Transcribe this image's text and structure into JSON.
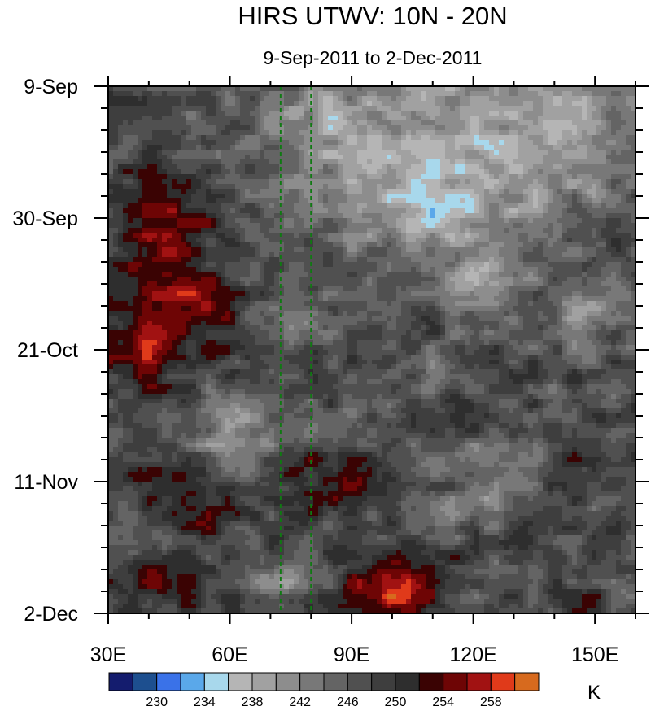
{
  "chart_data": {
    "type": "heatmap",
    "title": "HIRS UTWV: 10N - 20N",
    "subtitle": "9-Sep-2011 to 2-Dec-2011",
    "xlabel": "",
    "ylabel": "",
    "x_range": [
      30,
      160
    ],
    "y_range_days": [
      0,
      84
    ],
    "x_ticks": [
      {
        "value": 30,
        "label": "30E"
      },
      {
        "value": 60,
        "label": "60E"
      },
      {
        "value": 90,
        "label": "90E"
      },
      {
        "value": 120,
        "label": "120E"
      },
      {
        "value": 150,
        "label": "150E"
      }
    ],
    "y_ticks": [
      {
        "day": 0,
        "label": "9-Sep"
      },
      {
        "day": 21,
        "label": "30-Sep"
      },
      {
        "day": 42,
        "label": "21-Oct"
      },
      {
        "day": 63,
        "label": "11-Nov"
      },
      {
        "day": 84,
        "label": "2-Dec"
      }
    ],
    "reference_lines_lon": [
      72.5,
      80
    ],
    "colorbar": {
      "units": "K",
      "levels": [
        228,
        230,
        232,
        234,
        236,
        238,
        240,
        242,
        244,
        246,
        248,
        250,
        252,
        254,
        256,
        258,
        260
      ],
      "labels": [
        {
          "value": 230,
          "text": "230"
        },
        {
          "value": 234,
          "text": "234"
        },
        {
          "value": 238,
          "text": "238"
        },
        {
          "value": 242,
          "text": "242"
        },
        {
          "value": 246,
          "text": "246"
        },
        {
          "value": 250,
          "text": "250"
        },
        {
          "value": 254,
          "text": "254"
        },
        {
          "value": 258,
          "text": "258"
        }
      ],
      "colors": [
        "#141c6e",
        "#1d4f8f",
        "#3a72e8",
        "#5aa8ea",
        "#a8d8ec",
        "#b5b5b5",
        "#a1a1a1",
        "#8d8d8d",
        "#787878",
        "#646464",
        "#505050",
        "#3e3e3e",
        "#2e2e2e",
        "#3a0303",
        "#6e0505",
        "#a11212",
        "#e03a1a",
        "#d76a1e"
      ]
    },
    "field_base_k": 247.5,
    "features": [
      {
        "lon": 43,
        "day": 21,
        "slon": 9,
        "sday": 5,
        "amp": 8.5
      },
      {
        "lon": 48,
        "day": 35,
        "slon": 9,
        "sday": 6,
        "amp": 8.5
      },
      {
        "lon": 38,
        "day": 42,
        "slon": 6,
        "sday": 4,
        "amp": 6.5
      },
      {
        "lon": 100,
        "day": 80,
        "slon": 8,
        "sday": 4,
        "amp": 11.5
      },
      {
        "lon": 88,
        "day": 63,
        "slon": 13,
        "sday": 3,
        "amp": 7.0
      },
      {
        "lon": 46,
        "day": 63,
        "slon": 9,
        "sday": 2.5,
        "amp": 5.5
      },
      {
        "lon": 42,
        "day": 79,
        "slon": 10,
        "sday": 3,
        "amp": 5.5
      },
      {
        "lon": 52,
        "day": 69,
        "slon": 7,
        "sday": 2.5,
        "amp": 4.0
      },
      {
        "lon": 147,
        "day": 81,
        "slon": 5,
        "sday": 2,
        "amp": 4.0
      },
      {
        "lon": 147,
        "day": 61,
        "slon": 5,
        "sday": 2,
        "amp": 3.0
      },
      {
        "lon": 115,
        "day": 9,
        "slon": 30,
        "sday": 12,
        "amp": -8.5
      },
      {
        "lon": 108,
        "day": 20,
        "slon": 14,
        "sday": 4,
        "amp": -5.0
      },
      {
        "lon": 84,
        "day": 7,
        "slon": 10,
        "sday": 5,
        "amp": -3.5
      },
      {
        "lon": 145,
        "day": 7,
        "slon": 11,
        "sday": 5,
        "amp": -3.5
      },
      {
        "lon": 122,
        "day": 32,
        "slon": 7,
        "sday": 3,
        "amp": -8.0
      },
      {
        "lon": 62,
        "day": 55,
        "slon": 8,
        "sday": 4,
        "amp": -7.0
      },
      {
        "lon": 60,
        "day": 61,
        "slon": 5,
        "sday": 2,
        "amp": -4.0
      },
      {
        "lon": 71,
        "day": 79,
        "slon": 5,
        "sday": 2,
        "amp": -7.0
      },
      {
        "lon": 120,
        "day": 60,
        "slon": 12,
        "sday": 2.5,
        "amp": -5.0
      },
      {
        "lon": 120,
        "day": 67,
        "slon": 10,
        "sday": 2.5,
        "amp": -4.5
      },
      {
        "lon": 76,
        "day": 37,
        "slon": 7,
        "sday": 2.5,
        "amp": -3.5
      },
      {
        "lon": 148,
        "day": 35,
        "slon": 8,
        "sday": 4,
        "amp": -5.0
      },
      {
        "lon": 110,
        "day": 45,
        "slon": 8,
        "sday": 2.5,
        "amp": -3.0
      }
    ]
  }
}
